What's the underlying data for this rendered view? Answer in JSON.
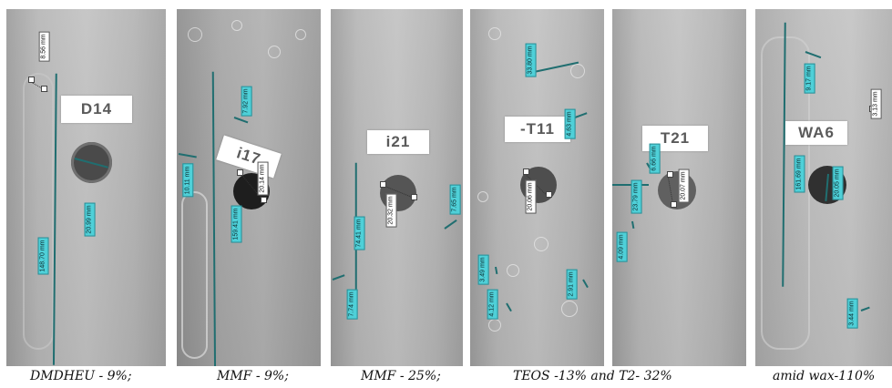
{
  "panels": [
    {
      "id": "dmdheu",
      "label": "D14",
      "caption": "DMDHEU - 9%;",
      "measurements": [
        "8.56 mm",
        "20.99 mm",
        "148.70 mm"
      ]
    },
    {
      "id": "mmf9",
      "label": "i17",
      "caption": "MMF - 9%;",
      "measurements": [
        "7.92 mm",
        "10.11 mm",
        "20.14 mm",
        "159.41 mm"
      ]
    },
    {
      "id": "mmf25",
      "label": "i21",
      "caption": "MMF - 25%;",
      "measurements": [
        "20.32 mm",
        "7.65 mm",
        "74.41 mm",
        "7.74 mm"
      ]
    },
    {
      "id": "teos",
      "label": "-T11",
      "caption": "TEOS -13% and T2- 32%",
      "measurements": [
        "33.80 mm",
        "4.63 mm",
        "20.06 mm",
        "3.49 mm",
        "4.12 mm",
        "2.91 mm"
      ]
    },
    {
      "id": "t2",
      "label": "T21",
      "measurements": [
        "6.66 mm",
        "23.79 mm",
        "20.07 mm",
        "4.09 mm"
      ]
    },
    {
      "id": "wax",
      "label": "WA6",
      "caption": "amid wax-110%",
      "measurements": [
        "9.17 mm",
        "3.13 mm",
        "161.69 mm",
        "20.05 mm",
        "3.44 mm"
      ]
    }
  ]
}
